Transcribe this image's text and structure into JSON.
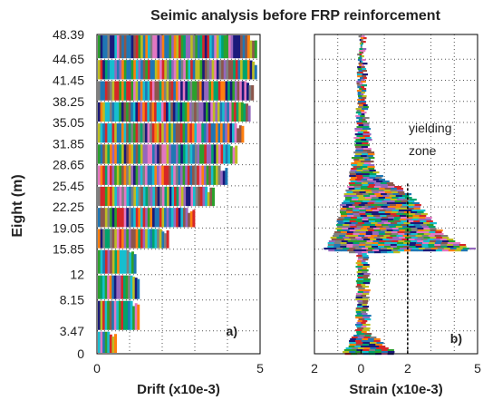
{
  "figure": {
    "title": "Seimic analysis before FRP reinforcement",
    "ylabel": "Eight  (m)",
    "y_ticks": [
      "0",
      "3.47",
      "8.15",
      "12",
      "15.85",
      "19.05",
      "22.25",
      "25.45",
      "28.65",
      "31.85",
      "35.05",
      "38.25",
      "41.45",
      "44.65",
      "48.39"
    ]
  },
  "palette": [
    "#d62728",
    "#1f77b4",
    "#2ca02c",
    "#ff7f0e",
    "#9467bd",
    "#17becf",
    "#e377c2",
    "#bcbd22",
    "#8c564b",
    "#1a1a7a",
    "#7f7f7f",
    "#00a36c"
  ],
  "chart_data": [
    {
      "type": "bar",
      "orientation": "horizontal",
      "panel_label": "a)",
      "xlabel": "Drift  (x10e-3)",
      "xlim": [
        0,
        5
      ],
      "x_ticks": [
        "0",
        "5"
      ],
      "ylim": [
        0,
        48.39
      ],
      "grid": true,
      "categories": [
        "0",
        "3.47",
        "8.15",
        "12",
        "15.85",
        "19.05",
        "22.25",
        "25.45",
        "28.65",
        "31.85",
        "35.05",
        "38.25",
        "41.45",
        "44.65",
        "48.39"
      ],
      "floor_levels": [
        {
          "y_from": 0,
          "y_to": 3.47,
          "max_drift": 0.6
        },
        {
          "y_from": 3.47,
          "y_to": 8.15,
          "max_drift": 1.3
        },
        {
          "y_from": 8.15,
          "y_to": 12,
          "max_drift": 1.3
        },
        {
          "y_from": 12,
          "y_to": 15.85,
          "max_drift": 1.2
        },
        {
          "y_from": 15.85,
          "y_to": 19.05,
          "max_drift": 2.2
        },
        {
          "y_from": 19.05,
          "y_to": 22.25,
          "max_drift": 3.0
        },
        {
          "y_from": 22.25,
          "y_to": 25.45,
          "max_drift": 3.6
        },
        {
          "y_from": 25.45,
          "y_to": 28.65,
          "max_drift": 4.0
        },
        {
          "y_from": 28.65,
          "y_to": 31.85,
          "max_drift": 4.3
        },
        {
          "y_from": 31.85,
          "y_to": 35.05,
          "max_drift": 4.5
        },
        {
          "y_from": 35.05,
          "y_to": 38.25,
          "max_drift": 4.7
        },
        {
          "y_from": 38.25,
          "y_to": 41.45,
          "max_drift": 4.8
        },
        {
          "y_from": 41.45,
          "y_to": 44.65,
          "max_drift": 4.9
        },
        {
          "y_from": 44.65,
          "y_to": 48.39,
          "max_drift": 4.9
        }
      ]
    },
    {
      "type": "area",
      "panel_label": "b)",
      "xlabel": "Strain  (x10e-3)",
      "xlim": [
        -2,
        5
      ],
      "x_ticks": [
        "2",
        "0",
        "2",
        "5"
      ],
      "x_tick_values": [
        -2,
        0,
        2,
        5
      ],
      "ylim": [
        0,
        48.39
      ],
      "grid": true,
      "annotation": "yielding\nzone",
      "yield_strain": 2,
      "envelope": {
        "left": [
          [
            0,
            -0.7
          ],
          [
            1.5,
            -0.5
          ],
          [
            3.47,
            -0.1
          ],
          [
            8.15,
            -0.1
          ],
          [
            12,
            -0.1
          ],
          [
            15.4,
            -0.1
          ],
          [
            15.85,
            -1.5
          ],
          [
            17,
            -1.3
          ],
          [
            19.05,
            -1.0
          ],
          [
            22.25,
            -0.8
          ],
          [
            25.45,
            -0.5
          ],
          [
            28.65,
            -0.3
          ],
          [
            31.85,
            -0.2
          ],
          [
            35.05,
            -0.1
          ],
          [
            41.45,
            -0.05
          ],
          [
            48.39,
            0
          ]
        ],
        "right": [
          [
            0,
            1.4
          ],
          [
            1.5,
            0.9
          ],
          [
            3.47,
            0.2
          ],
          [
            8.15,
            0.15
          ],
          [
            12,
            0.15
          ],
          [
            15.4,
            0.2
          ],
          [
            15.85,
            4.9
          ],
          [
            17,
            4.0
          ],
          [
            19.05,
            3.2
          ],
          [
            22.25,
            2.5
          ],
          [
            25.45,
            1.6
          ],
          [
            26.5,
            0.8
          ],
          [
            28.65,
            0.4
          ],
          [
            31.85,
            0.25
          ],
          [
            35.05,
            0.15
          ],
          [
            41.45,
            0.05
          ],
          [
            48.39,
            0
          ]
        ]
      }
    }
  ]
}
